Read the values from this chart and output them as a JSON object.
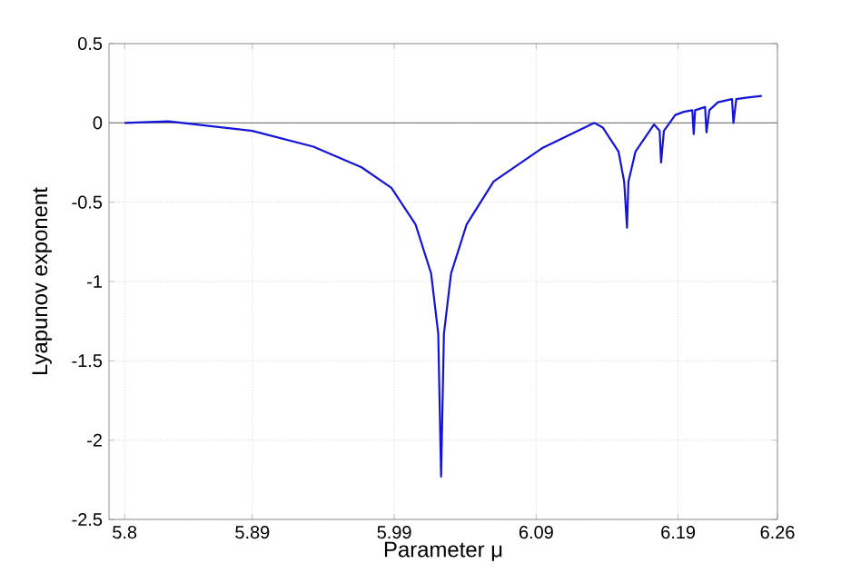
{
  "chart_data": {
    "type": "line",
    "xlabel": "Parameter μ",
    "ylabel": "Lyapunov exponent",
    "xlim": [
      5.789,
      6.26
    ],
    "ylim": [
      -2.5,
      0.5
    ],
    "xticks": [
      5.8,
      5.89,
      5.99,
      6.09,
      6.19,
      6.26
    ],
    "yticks": [
      -2.5,
      -2,
      -1.5,
      -1,
      -0.5,
      0,
      0.5
    ],
    "grid": true,
    "marker": "none",
    "line_style": "solid",
    "ref_lines": [
      {
        "axis": "y",
        "value": 0,
        "color": "#808080"
      }
    ],
    "series": [
      {
        "color": "#1414d8",
        "x": [
          5.8,
          5.831,
          5.89,
          5.933,
          5.967,
          5.988,
          6.005,
          6.016,
          6.021,
          6.023,
          6.025,
          6.03,
          6.041,
          6.06,
          6.094,
          6.131,
          6.137,
          6.148,
          6.152,
          6.154,
          6.155,
          6.16,
          6.173,
          6.177,
          6.178,
          6.18,
          6.188,
          6.194,
          6.2,
          6.201,
          6.202,
          6.209,
          6.21,
          6.212,
          6.218,
          6.228,
          6.229,
          6.231,
          6.239,
          6.249
        ],
        "values": [
          0,
          0.01,
          -0.05,
          -0.15,
          -0.28,
          -0.41,
          -0.64,
          -0.95,
          -1.33,
          -2.23,
          -1.33,
          -0.95,
          -0.64,
          -0.37,
          -0.16,
          0,
          -0.03,
          -0.18,
          -0.37,
          -0.66,
          -0.37,
          -0.18,
          -0.01,
          -0.05,
          -0.25,
          -0.05,
          0.05,
          0.07,
          0.08,
          -0.07,
          0.08,
          0.1,
          -0.06,
          0.08,
          0.13,
          0.15,
          0,
          0.15,
          0.16,
          0.17
        ]
      }
    ]
  }
}
